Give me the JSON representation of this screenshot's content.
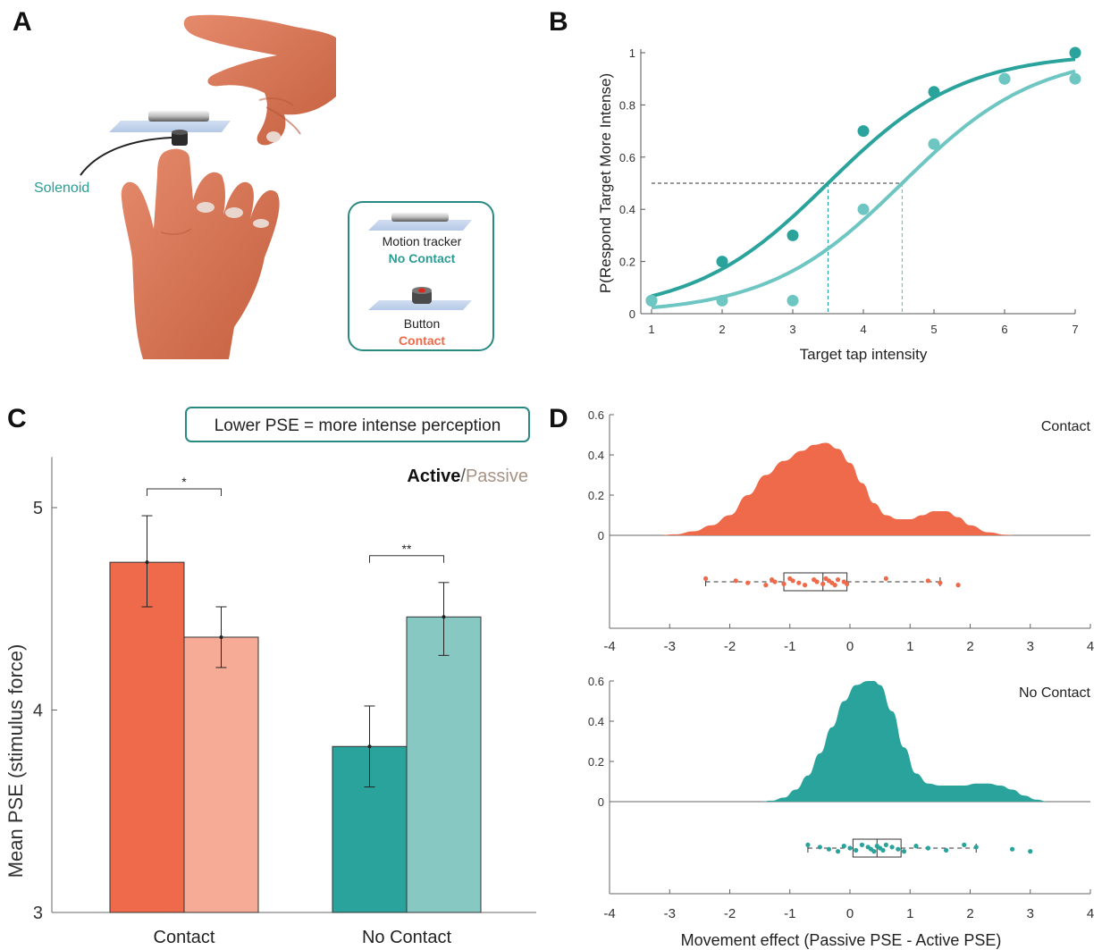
{
  "panels": {
    "a": "A",
    "b": "B",
    "c": "C",
    "d": "D"
  },
  "colors": {
    "contact": "#ee6a4a",
    "contact_light": "#f5ab96",
    "nocontact": "#2aa39c",
    "nocontact_light": "#87c8c3",
    "teal_text": "#2a9c94",
    "orange_text": "#ee6a4a"
  },
  "panel_a": {
    "solenoid_label": "Solenoid",
    "legend": {
      "motion_tracker": "Motion tracker",
      "no_contact": "No Contact",
      "button": "Button",
      "contact": "Contact"
    }
  },
  "chart_data": [
    {
      "type": "line",
      "panel": "B",
      "xlabel": "Target tap intensity",
      "ylabel": "P(Respond Target More Intense)",
      "xlim": [
        1,
        7
      ],
      "ylim": [
        0,
        1
      ],
      "xticks": [
        1,
        2,
        3,
        4,
        5,
        6,
        7
      ],
      "yticks": [
        0,
        0.2,
        0.4,
        0.6,
        0.8,
        1
      ],
      "ytick_labels": [
        "0",
        "0.2",
        "0.4",
        "0.6",
        "0.8",
        "1"
      ],
      "threshold": 0.5,
      "series": [
        {
          "key": "dark",
          "color": "#2aa39c",
          "x": [
            1,
            2,
            3,
            4,
            5,
            6,
            7
          ],
          "points": [
            0.05,
            0.2,
            0.3,
            0.7,
            0.85,
            0.9,
            1.0
          ],
          "pse": 3.5
        },
        {
          "key": "light",
          "color": "#6ec6c3",
          "x": [
            1,
            2,
            3,
            4,
            5,
            6,
            7
          ],
          "points": [
            0.05,
            0.05,
            0.05,
            0.4,
            0.65,
            0.9,
            0.9
          ],
          "pse": 4.55
        }
      ]
    },
    {
      "type": "bar",
      "panel": "C",
      "note": "Lower PSE = more intense perception",
      "legend_active": "Active",
      "legend_sep": "/",
      "legend_passive": "Passive",
      "ylabel": "Mean PSE (stimulus force)",
      "ylim": [
        3,
        5.25
      ],
      "yticks": [
        3,
        4,
        5
      ],
      "categories": [
        "Contact",
        "No Contact"
      ],
      "series": [
        {
          "name": "Active",
          "values": [
            4.73,
            3.82
          ],
          "err_low": [
            4.51,
            3.62
          ],
          "err_high": [
            4.96,
            4.02
          ],
          "colors": [
            "#ee6a4a",
            "#2aa39c"
          ]
        },
        {
          "name": "Passive",
          "values": [
            4.36,
            4.46
          ],
          "err_low": [
            4.21,
            4.27
          ],
          "err_high": [
            4.51,
            4.63
          ],
          "colors": [
            "#f5ab96",
            "#87c8c3"
          ]
        }
      ],
      "significance": [
        "*",
        "**"
      ]
    },
    {
      "type": "area",
      "panel": "D",
      "xlabel": "Movement effect (Passive PSE - Active PSE)",
      "xlim": [
        -4,
        4
      ],
      "xticks": [
        -4,
        -3,
        -2,
        -1,
        0,
        1,
        2,
        3,
        4
      ],
      "ylim": [
        0,
        0.6
      ],
      "yticks": [
        0,
        0.2,
        0.4,
        0.6
      ],
      "ytick_labels": [
        "0",
        "0.2",
        "0.4",
        "0.6"
      ],
      "subplots": [
        {
          "name": "Contact",
          "color": "#ee6a4a",
          "density_x": [
            -3.2,
            -2.9,
            -2.6,
            -2.3,
            -2.0,
            -1.7,
            -1.4,
            -1.1,
            -0.8,
            -0.6,
            -0.4,
            -0.2,
            0.0,
            0.2,
            0.4,
            0.6,
            0.8,
            1.0,
            1.2,
            1.4,
            1.6,
            1.8,
            2.0,
            2.3,
            2.6,
            2.8
          ],
          "density_y": [
            0.0,
            0.005,
            0.02,
            0.05,
            0.1,
            0.2,
            0.3,
            0.37,
            0.42,
            0.45,
            0.46,
            0.43,
            0.36,
            0.26,
            0.16,
            0.1,
            0.08,
            0.08,
            0.1,
            0.12,
            0.12,
            0.09,
            0.05,
            0.015,
            0.003,
            0.0
          ],
          "box": {
            "min": -2.4,
            "q1": -1.1,
            "median": -0.45,
            "q3": -0.05,
            "max": 1.5
          },
          "points": [
            -2.4,
            -1.9,
            -1.7,
            -1.4,
            -1.3,
            -1.25,
            -1.1,
            -1.0,
            -0.95,
            -0.85,
            -0.75,
            -0.6,
            -0.55,
            -0.45,
            -0.4,
            -0.35,
            -0.3,
            -0.25,
            -0.2,
            -0.1,
            -0.05,
            0.6,
            1.3,
            1.5,
            1.8
          ]
        },
        {
          "name": "No Contact",
          "color": "#2aa39c",
          "density_x": [
            -1.5,
            -1.3,
            -1.1,
            -0.9,
            -0.7,
            -0.5,
            -0.3,
            -0.1,
            0.1,
            0.3,
            0.4,
            0.5,
            0.7,
            0.9,
            1.1,
            1.3,
            1.5,
            1.7,
            1.9,
            2.1,
            2.3,
            2.5,
            2.7,
            2.9,
            3.1,
            3.3
          ],
          "density_y": [
            0.0,
            0.005,
            0.02,
            0.06,
            0.13,
            0.24,
            0.37,
            0.5,
            0.58,
            0.6,
            0.6,
            0.58,
            0.45,
            0.27,
            0.14,
            0.09,
            0.08,
            0.08,
            0.08,
            0.09,
            0.09,
            0.08,
            0.06,
            0.03,
            0.01,
            0.0
          ],
          "box": {
            "min": -0.7,
            "q1": 0.05,
            "median": 0.45,
            "q3": 0.85,
            "max": 2.1
          },
          "points": [
            -0.7,
            -0.5,
            -0.35,
            -0.2,
            -0.1,
            0.0,
            0.1,
            0.2,
            0.3,
            0.35,
            0.4,
            0.45,
            0.5,
            0.55,
            0.6,
            0.7,
            0.8,
            0.9,
            1.1,
            1.3,
            1.6,
            1.9,
            2.1,
            2.7,
            3.0
          ]
        }
      ]
    }
  ]
}
